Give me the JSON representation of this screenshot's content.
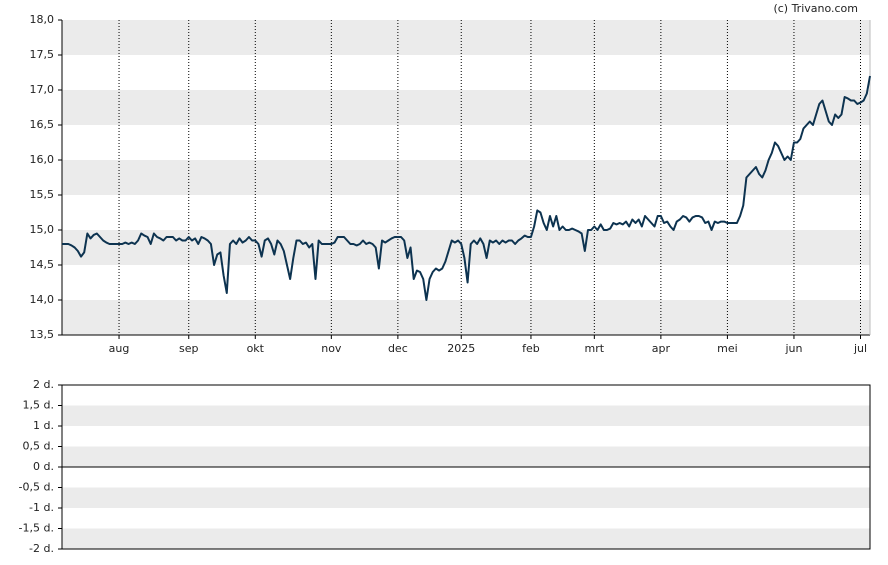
{
  "chart_data": [
    {
      "type": "line",
      "source": "(c) Trivano.com",
      "color": "#0d3350",
      "grid": "bands",
      "ylim": [
        13.5,
        18.0
      ],
      "yticks": [
        {
          "value": 13.5,
          "label": "13,5"
        },
        {
          "value": 14.0,
          "label": "14,0"
        },
        {
          "value": 14.5,
          "label": "14,5"
        },
        {
          "value": 15.0,
          "label": "15,0"
        },
        {
          "value": 15.5,
          "label": "15,5"
        },
        {
          "value": 16.0,
          "label": "16,0"
        },
        {
          "value": 16.5,
          "label": "16,5"
        },
        {
          "value": 17.0,
          "label": "17,0"
        },
        {
          "value": 17.5,
          "label": "17,5"
        },
        {
          "value": 18.0,
          "label": "18,0"
        }
      ],
      "xlim": [
        0,
        255
      ],
      "xticks": [
        {
          "value": 18,
          "label": "aug"
        },
        {
          "value": 40,
          "label": "sep"
        },
        {
          "value": 61,
          "label": "okt"
        },
        {
          "value": 85,
          "label": "nov"
        },
        {
          "value": 106,
          "label": "dec"
        },
        {
          "value": 126,
          "label": "2025"
        },
        {
          "value": 148,
          "label": "feb"
        },
        {
          "value": 168,
          "label": "mrt"
        },
        {
          "value": 189,
          "label": "apr"
        },
        {
          "value": 210,
          "label": "mei"
        },
        {
          "value": 231,
          "label": "jun"
        },
        {
          "value": 252,
          "label": "jul"
        }
      ],
      "values": [
        14.8,
        14.8,
        14.8,
        14.78,
        14.75,
        14.7,
        14.62,
        14.68,
        14.95,
        14.88,
        14.93,
        14.95,
        14.9,
        14.85,
        14.82,
        14.8,
        14.8,
        14.8,
        14.8,
        14.8,
        14.82,
        14.8,
        14.82,
        14.8,
        14.85,
        14.95,
        14.92,
        14.9,
        14.8,
        14.95,
        14.9,
        14.88,
        14.85,
        14.9,
        14.9,
        14.9,
        14.85,
        14.88,
        14.85,
        14.85,
        14.9,
        14.85,
        14.88,
        14.8,
        14.9,
        14.88,
        14.85,
        14.8,
        14.5,
        14.65,
        14.68,
        14.35,
        14.1,
        14.8,
        14.85,
        14.8,
        14.88,
        14.82,
        14.85,
        14.9,
        14.85,
        14.85,
        14.8,
        14.62,
        14.85,
        14.88,
        14.8,
        14.65,
        14.85,
        14.8,
        14.7,
        14.5,
        14.3,
        14.6,
        14.85,
        14.85,
        14.8,
        14.82,
        14.75,
        14.8,
        14.3,
        14.85,
        14.8,
        14.8,
        14.8,
        14.8,
        14.82,
        14.9,
        14.9,
        14.9,
        14.85,
        14.8,
        14.8,
        14.78,
        14.8,
        14.85,
        14.8,
        14.82,
        14.8,
        14.75,
        14.45,
        14.85,
        14.82,
        14.85,
        14.88,
        14.9,
        14.9,
        14.9,
        14.85,
        14.6,
        14.75,
        14.3,
        14.42,
        14.4,
        14.3,
        14.0,
        14.3,
        14.4,
        14.45,
        14.42,
        14.45,
        14.55,
        14.7,
        14.85,
        14.82,
        14.85,
        14.8,
        14.6,
        14.25,
        14.8,
        14.85,
        14.8,
        14.88,
        14.8,
        14.6,
        14.85,
        14.82,
        14.85,
        14.8,
        14.85,
        14.82,
        14.85,
        14.85,
        14.8,
        14.85,
        14.88,
        14.92,
        14.9,
        14.9,
        15.05,
        15.28,
        15.25,
        15.1,
        15.0,
        15.2,
        15.05,
        15.2,
        15.0,
        15.05,
        15.0,
        15.0,
        15.02,
        15.0,
        14.98,
        14.95,
        14.7,
        15.0,
        15.0,
        15.05,
        15.0,
        15.08,
        15.0,
        15.0,
        15.02,
        15.1,
        15.08,
        15.1,
        15.08,
        15.12,
        15.05,
        15.15,
        15.1,
        15.15,
        15.05,
        15.2,
        15.15,
        15.1,
        15.05,
        15.2,
        15.2,
        15.1,
        15.12,
        15.05,
        15.0,
        15.12,
        15.15,
        15.2,
        15.18,
        15.12,
        15.18,
        15.2,
        15.2,
        15.18,
        15.1,
        15.12,
        15.0,
        15.12,
        15.1,
        15.12,
        15.12,
        15.1,
        15.1,
        15.1,
        15.1,
        15.2,
        15.35,
        15.75,
        15.8,
        15.85,
        15.9,
        15.8,
        15.75,
        15.85,
        16.0,
        16.1,
        16.25,
        16.2,
        16.1,
        16.0,
        16.05,
        16.0,
        16.25,
        16.25,
        16.3,
        16.45,
        16.5,
        16.55,
        16.5,
        16.65,
        16.8,
        16.85,
        16.7,
        16.55,
        16.5,
        16.65,
        16.6,
        16.65,
        16.9,
        16.88,
        16.85,
        16.85,
        16.8,
        16.82,
        16.85,
        16.95,
        17.2
      ]
    },
    {
      "type": "line",
      "grid": "bands",
      "ylim": [
        -2,
        2
      ],
      "yticks": [
        {
          "value": -2,
          "label": "-2 d."
        },
        {
          "value": -1.5,
          "label": "-1,5 d."
        },
        {
          "value": -1,
          "label": "-1 d."
        },
        {
          "value": -0.5,
          "label": "-0,5 d."
        },
        {
          "value": 0,
          "label": "0 d."
        },
        {
          "value": 0.5,
          "label": "0,5 d."
        },
        {
          "value": 1,
          "label": "1 d."
        },
        {
          "value": 1.5,
          "label": "1,5 d."
        },
        {
          "value": 2,
          "label": "2 d."
        }
      ]
    }
  ]
}
